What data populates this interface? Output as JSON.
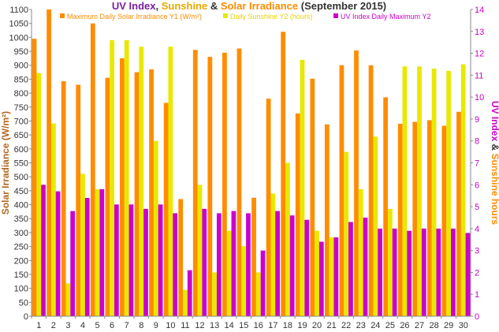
{
  "chart_data": {
    "type": "bar",
    "title_parts": [
      {
        "text": "UV Index",
        "color": "#7a1fa2"
      },
      {
        "text": ", ",
        "color": "#333333"
      },
      {
        "text": "Sunshine",
        "color": "#e6a800"
      },
      {
        "text": " & ",
        "color": "#333333"
      },
      {
        "text": "Solar Irradiance",
        "color": "#ff8c00"
      },
      {
        "text": " (September 2015)",
        "color": "#333333"
      }
    ],
    "ylabel_left": "Solar Irradiance (W/m²)",
    "ylabel_right_parts": [
      {
        "text": "UV Index",
        "color": "#cc00cc"
      },
      {
        "text": " & ",
        "color": "#333333"
      },
      {
        "text": "Sunshine hours",
        "color": "#ff8c00"
      }
    ],
    "categories": [
      "1",
      "2",
      "3",
      "4",
      "5",
      "6",
      "7",
      "8",
      "9",
      "10",
      "11",
      "12",
      "13",
      "14",
      "15",
      "16",
      "17",
      "18",
      "19",
      "20",
      "21",
      "22",
      "23",
      "24",
      "25",
      "26",
      "27",
      "28",
      "29",
      "30"
    ],
    "y1_ticks": [
      0,
      50,
      100,
      150,
      200,
      250,
      300,
      350,
      400,
      450,
      500,
      550,
      600,
      650,
      700,
      750,
      800,
      850,
      900,
      950,
      1000,
      1050,
      1100
    ],
    "y1_range": [
      0,
      1100
    ],
    "y2_ticks": [
      0,
      1,
      2,
      3,
      4,
      5,
      6,
      7,
      8,
      9,
      10,
      11,
      12,
      13,
      14
    ],
    "y2_range": [
      0,
      14
    ],
    "grid": false,
    "legend_position": "top",
    "series": [
      {
        "name": "Maximum Daily Solar Irradiance Y1 (W/m²)",
        "axis": "y1",
        "color": "#ff8c00",
        "values": [
          995,
          1100,
          843,
          830,
          1050,
          855,
          925,
          875,
          885,
          765,
          420,
          955,
          930,
          945,
          960,
          425,
          780,
          1020,
          727,
          852,
          688,
          900,
          953,
          900,
          785,
          690,
          697,
          703,
          683,
          733
        ]
      },
      {
        "name": "Daily Sunshine Y2 (hours)",
        "axis": "y2",
        "color": "#e8e800",
        "values": [
          11.1,
          8.8,
          1.5,
          6.5,
          5.8,
          12.6,
          12.6,
          12.3,
          8.0,
          12.3,
          1.2,
          6.0,
          2.0,
          3.9,
          3.2,
          2.0,
          5.6,
          7.0,
          11.7,
          3.9,
          3.6,
          7.5,
          5.8,
          8.2,
          4.9,
          11.4,
          11.4,
          11.3,
          11.2,
          11.5
        ]
      },
      {
        "name": "UV Index Daily Maximum Y2",
        "axis": "y2",
        "color": "#cc00cc",
        "values": [
          6.0,
          5.7,
          4.8,
          5.4,
          5.8,
          5.1,
          5.1,
          4.9,
          5.1,
          4.7,
          2.1,
          4.9,
          4.7,
          4.8,
          4.7,
          3.0,
          4.8,
          4.6,
          4.4,
          3.4,
          3.6,
          4.3,
          4.5,
          4.0,
          4.0,
          3.9,
          4.0,
          4.0,
          4.0,
          3.8
        ]
      }
    ]
  }
}
